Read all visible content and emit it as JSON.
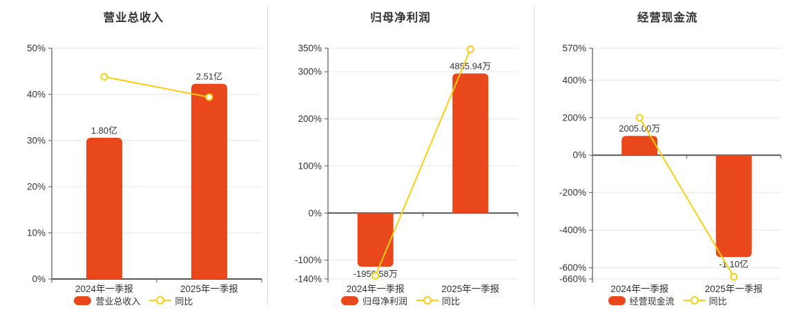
{
  "colors": {
    "bar": "#e8481c",
    "line": "#fbcf10",
    "axis": "#555555",
    "grid": "#e2e6f0",
    "text": "#333333",
    "divider": "#dcdcdc",
    "marker_fill": "#ffffff",
    "background": "#ffffff"
  },
  "chart_data": [
    {
      "type": "bar",
      "title": "营业总收入",
      "categories": [
        "2024年一季报",
        "2025年一季报"
      ],
      "ylim": [
        0,
        50
      ],
      "yticks": [
        0,
        10,
        20,
        30,
        40,
        50
      ],
      "ytick_suffix": "%",
      "grid": "on",
      "legend_position": "bottom",
      "series": [
        {
          "name": "营业总收入",
          "type": "bar",
          "value_labels": [
            "1.80亿",
            "2.51亿"
          ],
          "axis_values": [
            30.6,
            42.3
          ]
        },
        {
          "name": "同比",
          "type": "line",
          "values": [
            43.8,
            39.4
          ]
        }
      ]
    },
    {
      "type": "bar",
      "title": "归母净利润",
      "categories": [
        "2024年一季报",
        "2025年一季报"
      ],
      "ylim": [
        -140,
        350
      ],
      "yticks": [
        -140,
        -100,
        0,
        100,
        200,
        300,
        350
      ],
      "ytick_suffix": "%",
      "grid": "on",
      "legend_position": "bottom",
      "series": [
        {
          "name": "归母净利润",
          "type": "bar",
          "value_labels": [
            "-1959.58万",
            "4855.94万"
          ],
          "axis_values": [
            -114,
            296.5
          ]
        },
        {
          "name": "同比",
          "type": "line",
          "values": [
            -133,
            347.8
          ]
        }
      ]
    },
    {
      "type": "bar",
      "title": "经营现金流",
      "categories": [
        "2024年一季报",
        "2025年一季报"
      ],
      "ylim": [
        -660,
        570
      ],
      "yticks": [
        -660,
        -600,
        -400,
        -200,
        0,
        200,
        400,
        570
      ],
      "ytick_suffix": "%",
      "grid": "on",
      "legend_position": "bottom",
      "series": [
        {
          "name": "经营现金流",
          "type": "bar",
          "value_labels": [
            "2005.00万",
            "-1.10亿"
          ],
          "axis_values": [
            103,
            -543
          ]
        },
        {
          "name": "同比",
          "type": "line",
          "values": [
            199,
            -648.6
          ]
        }
      ]
    }
  ]
}
